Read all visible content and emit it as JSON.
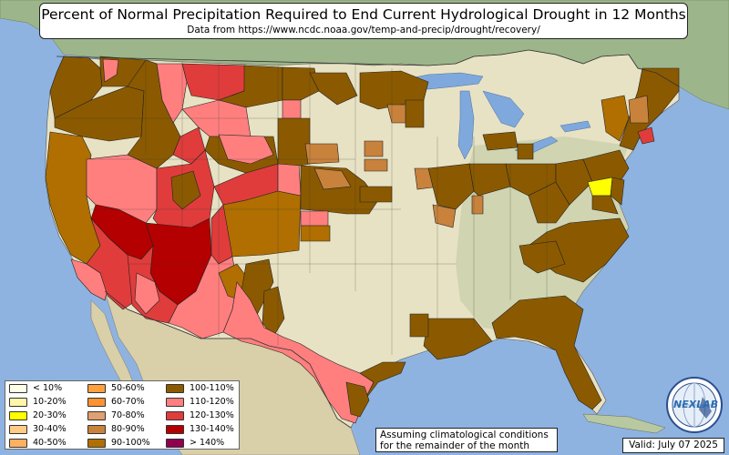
{
  "title": "Percent of Normal Precipitation Required to End Current Hydrological Drought in 12 Months",
  "subtitle": "Data from https://www.ncdc.noaa.gov/temp-and-precip/drought/recovery/",
  "note_line1": "Assuming climatological conditions",
  "note_line2": "for the remainder of the month",
  "valid": "Valid: July 07 2025",
  "logo": {
    "label": "NEXLAB",
    "icon": "globe-logo-icon"
  },
  "colors": {
    "ocean": "#8fb3e0",
    "land": "#e8e2c4",
    "lakes": "#7fa9dc",
    "forest": "#8caa78"
  },
  "legend": [
    {
      "label": "< 10%",
      "color": "#ffffe8"
    },
    {
      "label": "10-20%",
      "color": "#fff7a8"
    },
    {
      "label": "20-30%",
      "color": "#ffff00"
    },
    {
      "label": "30-40%",
      "color": "#ffcc88"
    },
    {
      "label": "40-50%",
      "color": "#ffb060"
    },
    {
      "label": "50-60%",
      "color": "#ffa040"
    },
    {
      "label": "60-70%",
      "color": "#ff9230"
    },
    {
      "label": "70-80%",
      "color": "#e0a070"
    },
    {
      "label": "80-90%",
      "color": "#c8823c"
    },
    {
      "label": "90-100%",
      "color": "#b06f00"
    },
    {
      "label": "100-110%",
      "color": "#8b5a00"
    },
    {
      "label": "110-120%",
      "color": "#ff7f7f"
    },
    {
      "label": "120-130%",
      "color": "#e03c3c"
    },
    {
      "label": "130-140%",
      "color": "#b40000"
    },
    {
      "label": "> 140%",
      "color": "#900050"
    }
  ],
  "regions": [
    {
      "name": "pacific-northwest",
      "category": "100-110%"
    },
    {
      "name": "oregon-east",
      "category": "90-100%"
    },
    {
      "name": "california-north",
      "category": "90-100%"
    },
    {
      "name": "california-south",
      "category": "120-130%"
    },
    {
      "name": "california-coast",
      "category": "110-120%"
    },
    {
      "name": "nevada-north",
      "category": "110-120%"
    },
    {
      "name": "nevada-south",
      "category": "130-140%"
    },
    {
      "name": "idaho",
      "category": "100-110%"
    },
    {
      "name": "montana-west",
      "category": "110-120%"
    },
    {
      "name": "montana-central",
      "category": "120-130%"
    },
    {
      "name": "montana-east",
      "category": "100-110%"
    },
    {
      "name": "wyoming-west",
      "category": "110-120%"
    },
    {
      "name": "wyoming-east",
      "category": "100-110%"
    },
    {
      "name": "utah",
      "category": "120-130%"
    },
    {
      "name": "colorado-west",
      "category": "120-130%"
    },
    {
      "name": "colorado-east",
      "category": "100-110%"
    },
    {
      "name": "arizona-north",
      "category": "130-140%"
    },
    {
      "name": "arizona-south",
      "category": "120-130%"
    },
    {
      "name": "new-mexico-north",
      "category": "100-110%"
    },
    {
      "name": "new-mexico-south",
      "category": "110-120%"
    },
    {
      "name": "west-texas",
      "category": "110-120%"
    },
    {
      "name": "texas-gulf",
      "category": "100-110%"
    },
    {
      "name": "nebraska-kansas",
      "category": "100-110%"
    },
    {
      "name": "kansas-patch",
      "category": "110-120%"
    },
    {
      "name": "dakotas-patch",
      "category": "110-120%"
    },
    {
      "name": "minnesota",
      "category": "100-110%"
    },
    {
      "name": "iowa-patch",
      "category": "80-90%"
    },
    {
      "name": "illinois-indiana",
      "category": "100-110%"
    },
    {
      "name": "ohio-valley",
      "category": "100-110%"
    },
    {
      "name": "appalachians",
      "category": "100-110%"
    },
    {
      "name": "carolinas",
      "category": "100-110%"
    },
    {
      "name": "georgia-florida",
      "category": "100-110%"
    },
    {
      "name": "gulf-coast",
      "category": "100-110%"
    },
    {
      "name": "mid-atlantic",
      "category": "100-110%"
    },
    {
      "name": "maryland",
      "category": "20-30%"
    },
    {
      "name": "new-england",
      "category": "100-110%"
    },
    {
      "name": "michigan-patch",
      "category": "100-110%"
    }
  ]
}
